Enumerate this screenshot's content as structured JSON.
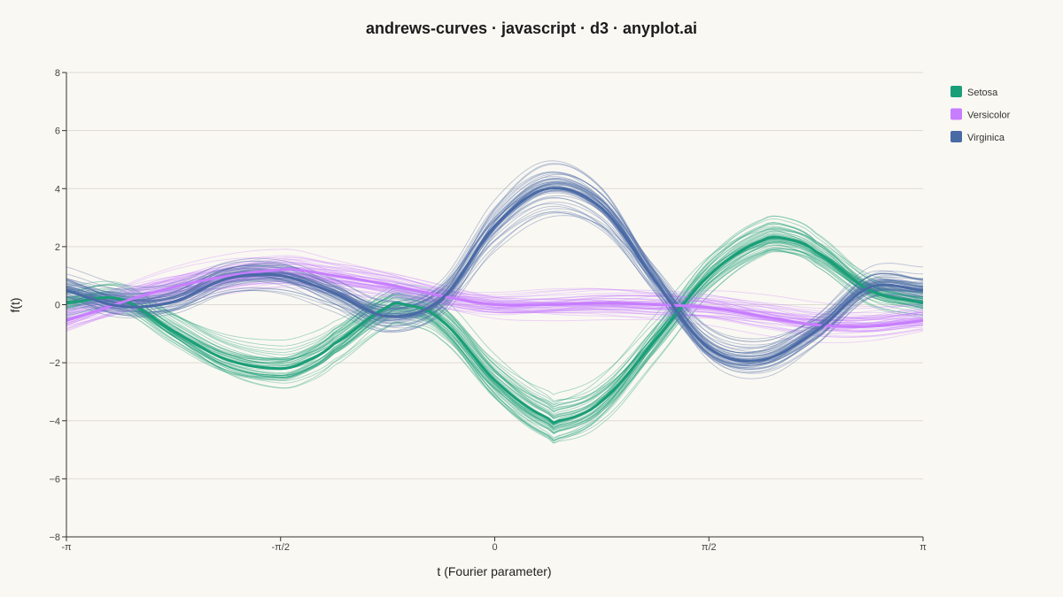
{
  "chart_data": {
    "type": "line",
    "title": "andrews-curves · javascript · d3 · anyplot.ai",
    "xlabel": "t (Fourier parameter)",
    "ylabel": "f(t)",
    "xlim": [
      -3.14159,
      3.14159
    ],
    "ylim": [
      -8,
      8
    ],
    "x_ticks": [
      {
        "value": -3.14159,
        "label": "-π"
      },
      {
        "value": -1.5708,
        "label": "-π/2"
      },
      {
        "value": 0,
        "label": "0"
      },
      {
        "value": 1.5708,
        "label": "π/2"
      },
      {
        "value": 3.14159,
        "label": "π"
      }
    ],
    "y_ticks": [
      {
        "value": 8,
        "label": "8"
      },
      {
        "value": 6,
        "label": "6"
      },
      {
        "value": 4,
        "label": "4"
      },
      {
        "value": 2,
        "label": "2"
      },
      {
        "value": 0,
        "label": "0"
      },
      {
        "value": -2,
        "label": "−2"
      },
      {
        "value": -4,
        "label": "−4"
      },
      {
        "value": -6,
        "label": "−6"
      },
      {
        "value": -8,
        "label": "−8"
      }
    ],
    "grid": "horizontal",
    "legend_position": "top-right",
    "series": [
      {
        "name": "Setosa",
        "color": "#1a9e77",
        "mean_x": [
          -3.14,
          -2.75,
          -2.36,
          -1.96,
          -1.57,
          -1.38,
          -1.18,
          -0.79,
          -0.66,
          -0.39,
          0.0,
          0.39,
          0.47,
          0.79,
          1.18,
          1.57,
          1.96,
          2.16,
          2.36,
          2.75,
          3.14
        ],
        "mean_y": [
          0.05,
          0.2,
          -0.9,
          -1.9,
          -2.2,
          -1.95,
          -1.35,
          -0.1,
          0.0,
          -0.55,
          -2.6,
          -3.9,
          -4.0,
          -3.3,
          -1.2,
          1.0,
          2.2,
          2.25,
          1.8,
          0.5,
          0.05
        ]
      },
      {
        "name": "Versicolor",
        "color": "#c77dff",
        "mean_x": [
          -3.14,
          -2.36,
          -1.57,
          -1.18,
          -0.79,
          -0.39,
          0.0,
          0.39,
          0.79,
          1.18,
          1.57,
          1.96,
          2.36,
          2.75,
          3.14
        ],
        "mean_y": [
          -0.55,
          0.6,
          1.2,
          1.0,
          0.7,
          0.3,
          0.0,
          0.0,
          0.05,
          0.0,
          -0.1,
          -0.4,
          -0.7,
          -0.75,
          -0.55
        ]
      },
      {
        "name": "Virginica",
        "color": "#4a6aa5",
        "mean_x": [
          -3.14,
          -2.75,
          -2.36,
          -1.96,
          -1.57,
          -1.18,
          -0.79,
          -0.39,
          0.0,
          0.39,
          0.79,
          1.18,
          1.57,
          1.96,
          2.36,
          2.75,
          3.14
        ],
        "mean_y": [
          0.5,
          -0.05,
          0.1,
          0.9,
          1.0,
          0.4,
          -0.4,
          0.2,
          2.7,
          4.0,
          3.3,
          0.8,
          -1.5,
          -1.9,
          -0.9,
          0.6,
          0.5
        ]
      }
    ]
  }
}
